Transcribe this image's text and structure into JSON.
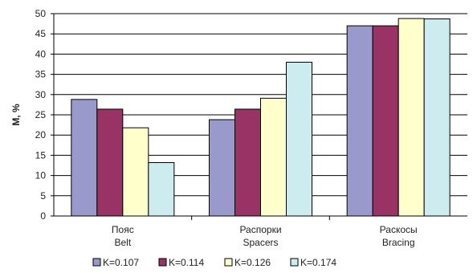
{
  "chart_data": {
    "type": "bar",
    "ylabel": "M, %",
    "ylim": [
      0,
      50
    ],
    "yticks": [
      0,
      5,
      10,
      15,
      20,
      25,
      30,
      35,
      40,
      45,
      50
    ],
    "grid": true,
    "legend_position": "bottom",
    "categories": [
      [
        "Пояс",
        "Belt"
      ],
      [
        "Распорки",
        "Spacers"
      ],
      [
        "Раскосы",
        "Bracing"
      ]
    ],
    "series": [
      {
        "name": "K=0.107",
        "color": "#9999cc",
        "values": [
          28.8,
          23.8,
          47.0
        ]
      },
      {
        "name": "K=0.114",
        "color": "#993366",
        "values": [
          26.4,
          26.4,
          47.0
        ]
      },
      {
        "name": "K=0.126",
        "color": "#ffffcc",
        "values": [
          21.8,
          29.1,
          48.8
        ]
      },
      {
        "name": "K=0.174",
        "color": "#ccecf0",
        "values": [
          13.2,
          38.0,
          48.7
        ]
      }
    ]
  }
}
